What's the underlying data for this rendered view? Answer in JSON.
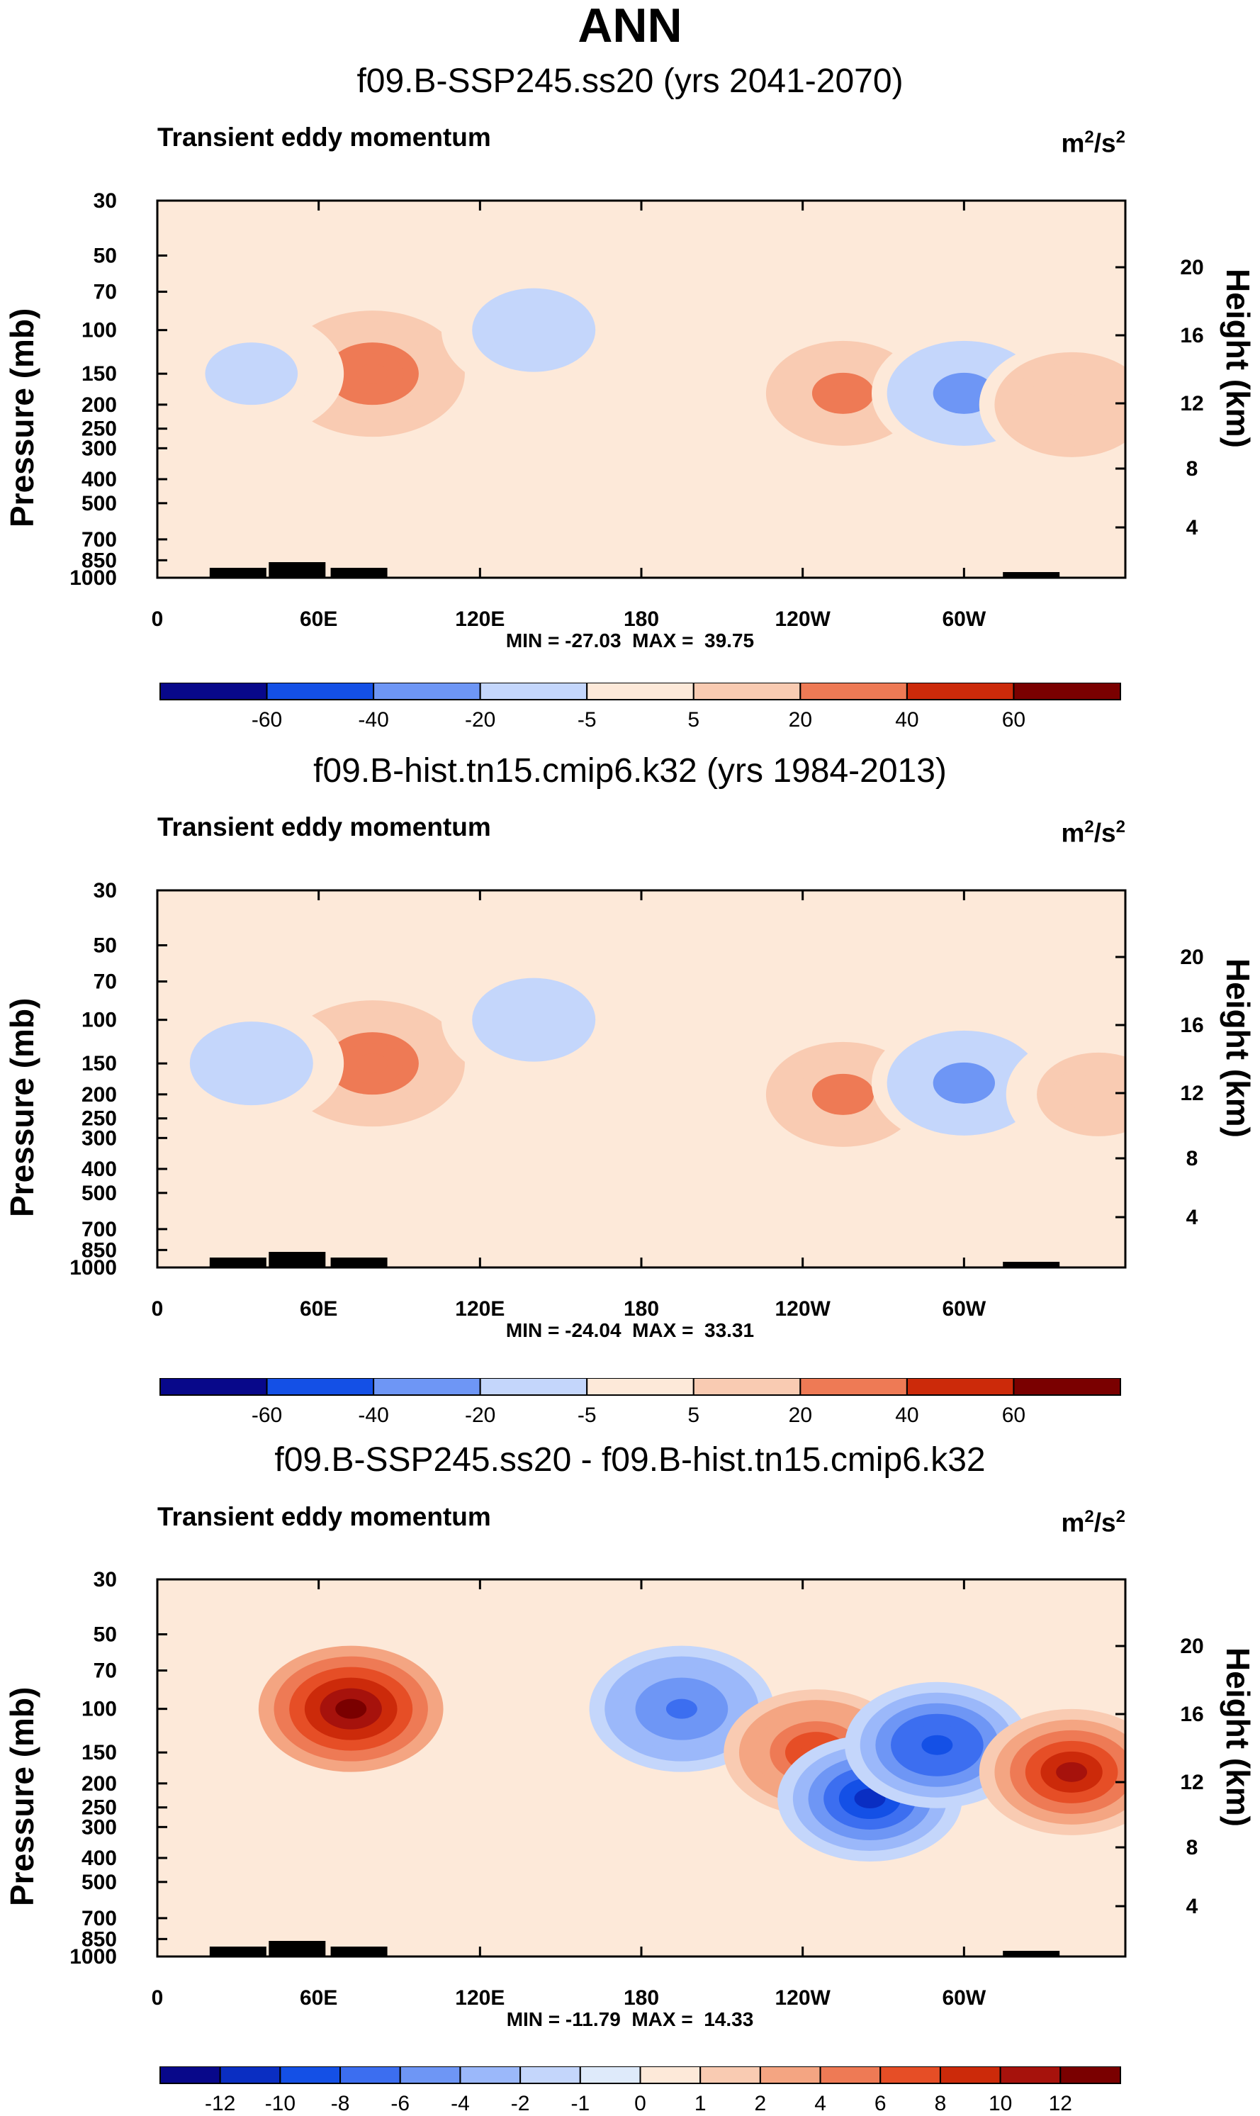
{
  "title": "ANN",
  "chart_data": [
    {
      "type": "contour",
      "title": "f09.B-SSP245.ss20 (yrs 2041-2070)",
      "variable": "Transient eddy momentum",
      "units_base": "m",
      "units_exp": "2",
      "units_den": "/s",
      "units_den_exp": "2",
      "ylabel": "Pressure (mb)",
      "ylabel_right": "Height (km)",
      "x_ticks": [
        "0",
        "60E",
        "120E",
        "180",
        "120W",
        "60W"
      ],
      "y_ticks": [
        "30",
        "50",
        "70",
        "100",
        "150",
        "200",
        "250",
        "300",
        "400",
        "500",
        "700",
        "850",
        "1000"
      ],
      "y_ticks_right": [
        "20",
        "16",
        "12",
        "8",
        "4"
      ],
      "min_max": "MIN = -27.03  MAX =  39.75",
      "colorbar_labels": [
        "-60",
        "-40",
        "-20",
        "-5",
        "5",
        "20",
        "40",
        "60"
      ],
      "colorbar_ticks": [
        -60,
        -40,
        -20,
        -5,
        5,
        20,
        40,
        60
      ],
      "features": [
        {
          "lon": 80,
          "p": 150,
          "value": 39.75
        },
        {
          "lon": 140,
          "p": 100,
          "value": -12
        },
        {
          "lon": 35,
          "p": 150,
          "value": -8
        },
        {
          "lon": 255,
          "p": 180,
          "value": 25
        },
        {
          "lon": 300,
          "p": 180,
          "value": -27.03
        },
        {
          "lon": 340,
          "p": 200,
          "value": 20
        }
      ]
    },
    {
      "type": "contour",
      "title": "f09.B-hist.tn15.cmip6.k32 (yrs 1984-2013)",
      "variable": "Transient eddy momentum",
      "units_base": "m",
      "units_exp": "2",
      "units_den": "/s",
      "units_den_exp": "2",
      "ylabel": "Pressure (mb)",
      "ylabel_right": "Height (km)",
      "x_ticks": [
        "0",
        "60E",
        "120E",
        "180",
        "120W",
        "60W"
      ],
      "y_ticks": [
        "30",
        "50",
        "70",
        "100",
        "150",
        "200",
        "250",
        "300",
        "400",
        "500",
        "700",
        "850",
        "1000"
      ],
      "y_ticks_right": [
        "20",
        "16",
        "12",
        "8",
        "4"
      ],
      "min_max": "MIN = -24.04  MAX =  33.31",
      "colorbar_labels": [
        "-60",
        "-40",
        "-20",
        "-5",
        "5",
        "20",
        "40",
        "60"
      ],
      "colorbar_ticks": [
        -60,
        -40,
        -20,
        -5,
        5,
        20,
        40,
        60
      ],
      "features": [
        {
          "lon": 80,
          "p": 150,
          "value": 33.31
        },
        {
          "lon": 140,
          "p": 100,
          "value": -10
        },
        {
          "lon": 35,
          "p": 150,
          "value": -10
        },
        {
          "lon": 255,
          "p": 200,
          "value": 25
        },
        {
          "lon": 300,
          "p": 180,
          "value": -24.04
        },
        {
          "lon": 350,
          "p": 200,
          "value": 15
        }
      ]
    },
    {
      "type": "contour",
      "title": "f09.B-SSP245.ss20 - f09.B-hist.tn15.cmip6.k32",
      "variable": "Transient eddy momentum",
      "units_base": "m",
      "units_exp": "2",
      "units_den": "/s",
      "units_den_exp": "2",
      "ylabel": "Pressure (mb)",
      "ylabel_right": "Height (km)",
      "x_ticks": [
        "0",
        "60E",
        "120E",
        "180",
        "120W",
        "60W"
      ],
      "y_ticks": [
        "30",
        "50",
        "70",
        "100",
        "150",
        "200",
        "250",
        "300",
        "400",
        "500",
        "700",
        "850",
        "1000"
      ],
      "y_ticks_right": [
        "20",
        "16",
        "12",
        "8",
        "4"
      ],
      "min_max": "MIN = -11.79  MAX =  14.33",
      "colorbar_labels": [
        "-12",
        "-10",
        "-8",
        "-6",
        "-4",
        "-2",
        "-1",
        "0",
        "1",
        "2",
        "4",
        "6",
        "8",
        "10",
        "12"
      ],
      "colorbar_ticks": [
        -12,
        -10,
        -8,
        -6,
        -4,
        -2,
        -1,
        0,
        1,
        2,
        4,
        6,
        8,
        10,
        12
      ],
      "features": [
        {
          "lon": 72,
          "p": 100,
          "value": 14.33
        },
        {
          "lon": 195,
          "p": 100,
          "value": -6
        },
        {
          "lon": 245,
          "p": 150,
          "value": 8
        },
        {
          "lon": 265,
          "p": 230,
          "value": -11.79
        },
        {
          "lon": 290,
          "p": 140,
          "value": -9
        },
        {
          "lon": 340,
          "p": 180,
          "value": 11
        }
      ]
    }
  ],
  "colors": {
    "palette": [
      "#08088a",
      "#0a2ec2",
      "#1450e6",
      "#3c6ef0",
      "#6e96f5",
      "#9bb8fa",
      "#c4d6fb",
      "#deeafa",
      "#fde9d9",
      "#f9cbb2",
      "#f4a582",
      "#ee7a55",
      "#e64e26",
      "#cc2a0a",
      "#a6120c",
      "#7a0000"
    ],
    "background": "#ffffff",
    "terrain": "#000000"
  }
}
